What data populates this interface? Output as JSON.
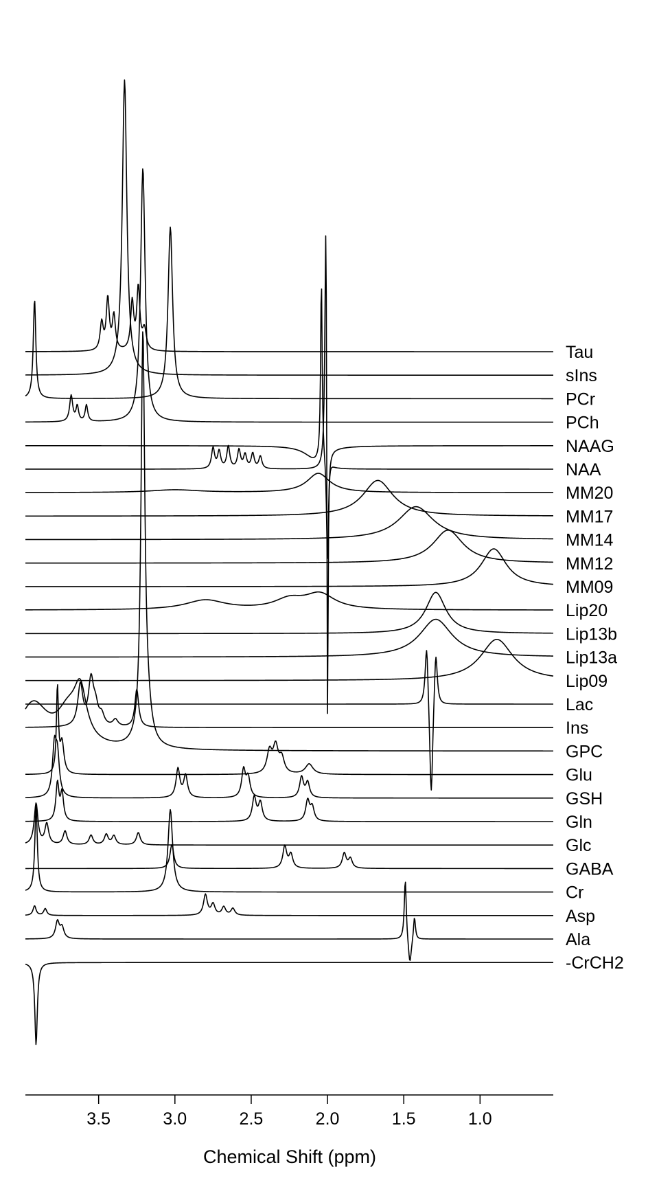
{
  "chart_data": {
    "type": "line",
    "style": "stacked-spectra",
    "xlabel": "Chemical Shift (ppm)",
    "title": "",
    "x_reversed": true,
    "xlim": [
      3.98,
      0.52
    ],
    "x_ticks": [
      {
        "value": 3.5,
        "label": "3.5"
      },
      {
        "value": 3.0,
        "label": "3.0"
      },
      {
        "value": 2.5,
        "label": "2.5"
      },
      {
        "value": 2.0,
        "label": "2.0"
      },
      {
        "value": 1.5,
        "label": "1.5"
      },
      {
        "value": 1.0,
        "label": "1.0"
      }
    ],
    "grid": false,
    "line_color": "#000000",
    "series": [
      {
        "name": "Tau",
        "peaks": [
          [
            3.48,
            -40,
            0.012
          ],
          [
            3.44,
            -75,
            0.012
          ],
          [
            3.4,
            -50,
            0.012
          ],
          [
            3.28,
            -70,
            0.012
          ],
          [
            3.24,
            -90,
            0.012
          ],
          [
            3.2,
            -30,
            0.015
          ]
        ]
      },
      {
        "name": "sIns",
        "peaks": [
          [
            3.33,
            -430,
            0.018
          ]
        ]
      },
      {
        "name": "PCr",
        "peaks": [
          [
            3.92,
            -145,
            0.01
          ],
          [
            3.03,
            -250,
            0.018
          ]
        ]
      },
      {
        "name": "PCh",
        "peaks": [
          [
            3.68,
            -38,
            0.012
          ],
          [
            3.64,
            -22,
            0.01
          ],
          [
            3.58,
            -24,
            0.01
          ],
          [
            3.21,
            -370,
            0.018
          ]
        ]
      },
      {
        "name": "NAAG",
        "peaks": [
          [
            2.04,
            -265,
            0.006
          ],
          [
            2.0,
            160,
            0.008
          ],
          [
            2.08,
            20,
            0.08
          ]
        ]
      },
      {
        "name": "NAA",
        "peaks": [
          [
            2.01,
            -440,
            0.008
          ],
          [
            2.0,
            530,
            0.005
          ],
          [
            2.75,
            -30,
            0.012
          ],
          [
            2.71,
            -25,
            0.012
          ],
          [
            2.65,
            -32,
            0.012
          ],
          [
            2.58,
            -27,
            0.012
          ],
          [
            2.54,
            -20,
            0.012
          ],
          [
            2.49,
            -22,
            0.012
          ],
          [
            2.44,
            -18,
            0.012
          ]
        ]
      },
      {
        "name": "MM20",
        "peaks": [
          [
            2.06,
            -28,
            0.09
          ],
          [
            3.0,
            -4,
            0.2
          ]
        ]
      },
      {
        "name": "MM17",
        "peaks": [
          [
            1.67,
            -52,
            0.12
          ]
        ]
      },
      {
        "name": "MM14",
        "peaks": [
          [
            1.42,
            -48,
            0.14
          ]
        ]
      },
      {
        "name": "MM12",
        "peaks": [
          [
            1.21,
            -48,
            0.12
          ]
        ]
      },
      {
        "name": "MM09",
        "peaks": [
          [
            0.91,
            -55,
            0.1
          ]
        ]
      },
      {
        "name": "Lip20",
        "peaks": [
          [
            2.8,
            -14,
            0.16
          ],
          [
            2.25,
            -14,
            0.12
          ],
          [
            2.05,
            -22,
            0.12
          ]
        ]
      },
      {
        "name": "Lip13b",
        "peaks": [
          [
            1.29,
            -60,
            0.08
          ]
        ]
      },
      {
        "name": "Lip13a",
        "peaks": [
          [
            1.29,
            -55,
            0.13
          ]
        ]
      },
      {
        "name": "Lip09",
        "peaks": [
          [
            0.89,
            -60,
            0.13
          ]
        ]
      },
      {
        "name": "Lac",
        "peaks": [
          [
            1.35,
            -95,
            0.012
          ],
          [
            1.32,
            150,
            0.012
          ],
          [
            1.29,
            -85,
            0.012
          ]
        ]
      },
      {
        "name": "Ins",
        "peaks": [
          [
            3.25,
            -55,
            0.015
          ],
          [
            3.62,
            -60,
            0.02
          ],
          [
            3.55,
            -65,
            0.02
          ],
          [
            3.52,
            -25,
            0.02
          ],
          [
            3.48,
            -15,
            0.02
          ],
          [
            3.39,
            -10,
            0.02
          ]
        ]
      },
      {
        "name": "GPC",
        "peaks": [
          [
            3.21,
            -590,
            0.015
          ],
          [
            3.93,
            -65,
            0.12
          ],
          [
            3.7,
            -45,
            0.09
          ],
          [
            3.62,
            -70,
            0.05
          ],
          [
            3.18,
            -40,
            0.03
          ]
        ]
      },
      {
        "name": "Glu",
        "peaks": [
          [
            3.77,
            -125,
            0.008
          ],
          [
            3.74,
            -45,
            0.015
          ],
          [
            2.38,
            -32,
            0.02
          ],
          [
            2.34,
            -38,
            0.02
          ],
          [
            2.3,
            -22,
            0.02
          ],
          [
            2.12,
            -15,
            0.03
          ]
        ]
      },
      {
        "name": "GSH",
        "peaks": [
          [
            3.79,
            -70,
            0.015
          ],
          [
            3.77,
            -55,
            0.015
          ],
          [
            2.98,
            -42,
            0.015
          ],
          [
            2.93,
            -32,
            0.015
          ],
          [
            2.55,
            -40,
            0.015
          ],
          [
            2.52,
            -28,
            0.015
          ],
          [
            2.17,
            -30,
            0.015
          ],
          [
            2.13,
            -22,
            0.015
          ]
        ]
      },
      {
        "name": "Gln",
        "peaks": [
          [
            3.77,
            -55,
            0.012
          ],
          [
            3.74,
            -40,
            0.012
          ],
          [
            2.48,
            -35,
            0.015
          ],
          [
            2.44,
            -27,
            0.015
          ],
          [
            2.13,
            -30,
            0.015
          ],
          [
            2.1,
            -20,
            0.015
          ]
        ]
      },
      {
        "name": "Glc",
        "peaks": [
          [
            3.91,
            -60,
            0.015
          ],
          [
            3.84,
            -30,
            0.015
          ],
          [
            3.72,
            -20,
            0.015
          ],
          [
            3.55,
            -14,
            0.015
          ],
          [
            3.45,
            -15,
            0.015
          ],
          [
            3.4,
            -13,
            0.015
          ],
          [
            3.24,
            -18,
            0.015
          ]
        ]
      },
      {
        "name": "GABA",
        "peaks": [
          [
            3.02,
            -35,
            0.015
          ],
          [
            2.28,
            -32,
            0.015
          ],
          [
            2.24,
            -20,
            0.015
          ],
          [
            1.89,
            -22,
            0.015
          ],
          [
            1.85,
            -14,
            0.015
          ]
        ]
      },
      {
        "name": "Cr",
        "peaks": [
          [
            3.91,
            -125,
            0.01
          ],
          [
            3.03,
            -120,
            0.018
          ]
        ]
      },
      {
        "name": "Asp",
        "peaks": [
          [
            3.92,
            -14,
            0.012
          ],
          [
            3.85,
            -10,
            0.012
          ],
          [
            2.8,
            -30,
            0.015
          ],
          [
            2.75,
            -16,
            0.015
          ],
          [
            2.68,
            -12,
            0.015
          ],
          [
            2.62,
            -10,
            0.015
          ]
        ]
      },
      {
        "name": "Ala",
        "peaks": [
          [
            3.77,
            -25,
            0.015
          ],
          [
            3.74,
            -16,
            0.015
          ],
          [
            1.49,
            -90,
            0.008
          ],
          [
            1.46,
            40,
            0.012
          ],
          [
            1.43,
            -35,
            0.008
          ]
        ]
      },
      {
        "name": "-CrCH2",
        "peaks": [
          [
            3.91,
            120,
            0.01
          ]
        ]
      }
    ]
  }
}
